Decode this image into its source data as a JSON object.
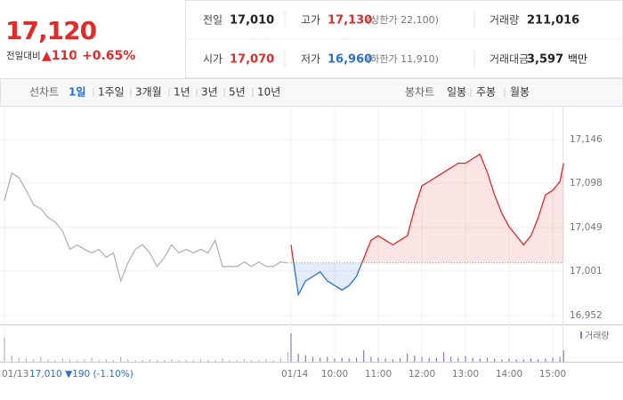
{
  "quote": {
    "price": "17,120",
    "change_label": "전일대비",
    "change": "▲110",
    "change_pct": "+0.65%"
  },
  "summary": [
    {
      "label": "전일",
      "value": "17,010"
    },
    {
      "label": "고가",
      "value": "17,130",
      "note": "(상한가 22,100)"
    },
    {
      "label": "거래량",
      "value": "211,016"
    },
    {
      "label": "시가",
      "value": "17,070"
    },
    {
      "label": "저가",
      "value": "16,960",
      "note": "(하한가 11,910)"
    },
    {
      "label": "거래대금",
      "value": "3,597",
      "unit": "백만"
    }
  ],
  "tabs": {
    "line_label": "선차트",
    "line_periods": [
      "1일",
      "1주일",
      "3개월",
      "1년",
      "3년",
      "5년",
      "10년"
    ],
    "line_selected": 0,
    "candle_label": "봉차트",
    "candle_periods": [
      "일봉",
      "주봉",
      "월봉"
    ]
  },
  "chart_data": {
    "type": "line",
    "series": [
      {
        "name": "01/13",
        "color": "#b4b4b4",
        "x": [
          "09:00",
          "09:10",
          "09:20",
          "09:30",
          "09:40",
          "09:50",
          "10:00",
          "10:10",
          "10:20",
          "10:30",
          "10:40",
          "10:50",
          "11:00",
          "11:10",
          "11:20",
          "11:30",
          "11:40",
          "11:50",
          "12:00",
          "12:10",
          "12:20",
          "12:30",
          "12:40",
          "12:50",
          "13:00",
          "13:10",
          "13:20",
          "13:30",
          "13:40",
          "13:50",
          "14:00",
          "14:10",
          "14:20",
          "14:30",
          "14:40",
          "14:50",
          "15:00",
          "15:10",
          "15:20",
          "15:30"
        ],
        "values": [
          17079,
          17109,
          17104,
          17090,
          17074,
          17070,
          17060,
          17055,
          17045,
          17025,
          17030,
          17025,
          17021,
          17025,
          17016,
          17021,
          16990,
          17010,
          17025,
          17030,
          17021,
          17006,
          17016,
          17030,
          17021,
          17025,
          17021,
          17025,
          17021,
          17035,
          17006,
          17006,
          17006,
          17011,
          17006,
          17011,
          17006,
          17006,
          17011,
          17010
        ],
        "volume": [
          30,
          8,
          5,
          4,
          3,
          6,
          3,
          2,
          4,
          3,
          2,
          3,
          5,
          2,
          3,
          2,
          6,
          3,
          2,
          2,
          3,
          2,
          2,
          3,
          2,
          2,
          2,
          3,
          2,
          2,
          4,
          2,
          2,
          3,
          2,
          2,
          3,
          2,
          4,
          12
        ]
      },
      {
        "name": "01/14",
        "color": "#e12b2b",
        "down_color": "#2d6fd1",
        "volume_color": "#8a78c8",
        "x": [
          "09:00",
          "09:10",
          "09:20",
          "09:30",
          "09:40",
          "09:50",
          "10:00",
          "10:10",
          "10:20",
          "10:30",
          "10:40",
          "10:50",
          "11:00",
          "11:10",
          "11:20",
          "11:30",
          "11:40",
          "11:50",
          "12:00",
          "12:10",
          "12:20",
          "12:30",
          "12:40",
          "12:50",
          "13:00",
          "13:10",
          "13:20",
          "13:30",
          "13:40",
          "13:50",
          "14:00",
          "14:10",
          "14:20",
          "14:30",
          "14:40",
          "14:50",
          "15:00",
          "15:10",
          "15:15"
        ],
        "values": [
          17030,
          16975,
          16990,
          16995,
          17000,
          16990,
          16985,
          16980,
          16985,
          16995,
          17015,
          17035,
          17040,
          17035,
          17030,
          17035,
          17040,
          17070,
          17095,
          17100,
          17105,
          17110,
          17115,
          17120,
          17120,
          17125,
          17130,
          17110,
          17085,
          17065,
          17050,
          17040,
          17030,
          17040,
          17060,
          17085,
          17090,
          17100,
          17120
        ],
        "volume": [
          35,
          10,
          8,
          6,
          5,
          6,
          4,
          5,
          4,
          5,
          14,
          6,
          5,
          4,
          3,
          4,
          10,
          8,
          6,
          5,
          5,
          12,
          6,
          5,
          7,
          5,
          4,
          5,
          4,
          3,
          4,
          3,
          3,
          4,
          3,
          4,
          5,
          6,
          14
        ]
      }
    ],
    "baseline": 17010,
    "ylim": [
      16945,
      17153
    ],
    "yticks": [
      {
        "value": 16952,
        "label": "16,952"
      },
      {
        "value": 17001,
        "label": "17,001"
      },
      {
        "value": 17049,
        "label": "17,049"
      },
      {
        "value": 17098,
        "label": "17,098"
      },
      {
        "value": 17146,
        "label": "17,146"
      }
    ],
    "xticks": [
      "10:00",
      "11:00",
      "12:00",
      "13:00",
      "14:00",
      "15:00"
    ],
    "annotation": "17,010 ▼190 (-1.10%)",
    "volume_label": "거래량",
    "grid": true
  }
}
